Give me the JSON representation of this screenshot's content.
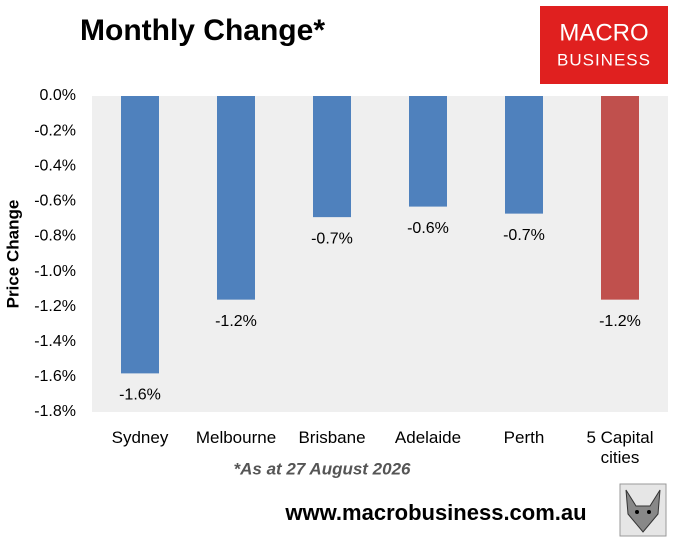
{
  "chart_data": {
    "type": "bar",
    "title": "Monthly Change*",
    "y_label": "Price Change",
    "footnote": "*As at 27 August 2026",
    "website": "www.macrobusiness.com.au",
    "logo": [
      "MACRO",
      "BUSINESS"
    ],
    "categories": [
      "Sydney",
      "Melbourne",
      "Brisbane",
      "Adelaide",
      "Perth",
      "5 Capital cities"
    ],
    "values": [
      -1.58,
      -1.16,
      -0.69,
      -0.63,
      -0.67,
      -1.16
    ],
    "value_labels": [
      "-1.6%",
      "-1.2%",
      "-0.7%",
      "-0.6%",
      "-0.7%",
      "-1.2%"
    ],
    "colors": [
      "#4f81bd",
      "#4f81bd",
      "#4f81bd",
      "#4f81bd",
      "#4f81bd",
      "#c0504d"
    ],
    "ylim": [
      -1.8,
      0
    ],
    "yticks": [
      {
        "value": 0,
        "label": "0.0%"
      },
      {
        "value": -0.2,
        "label": "-0.2%"
      },
      {
        "value": -0.4,
        "label": "-0.4%"
      },
      {
        "value": -0.6,
        "label": "-0.6%"
      },
      {
        "value": -0.8,
        "label": "-0.8%"
      },
      {
        "value": -1.0,
        "label": "-1.0%"
      },
      {
        "value": -1.2,
        "label": "-1.2%"
      },
      {
        "value": -1.4,
        "label": "-1.4%"
      },
      {
        "value": -1.6,
        "label": "-1.6%"
      },
      {
        "value": -1.8,
        "label": "-1.8%"
      }
    ],
    "grid": false
  }
}
